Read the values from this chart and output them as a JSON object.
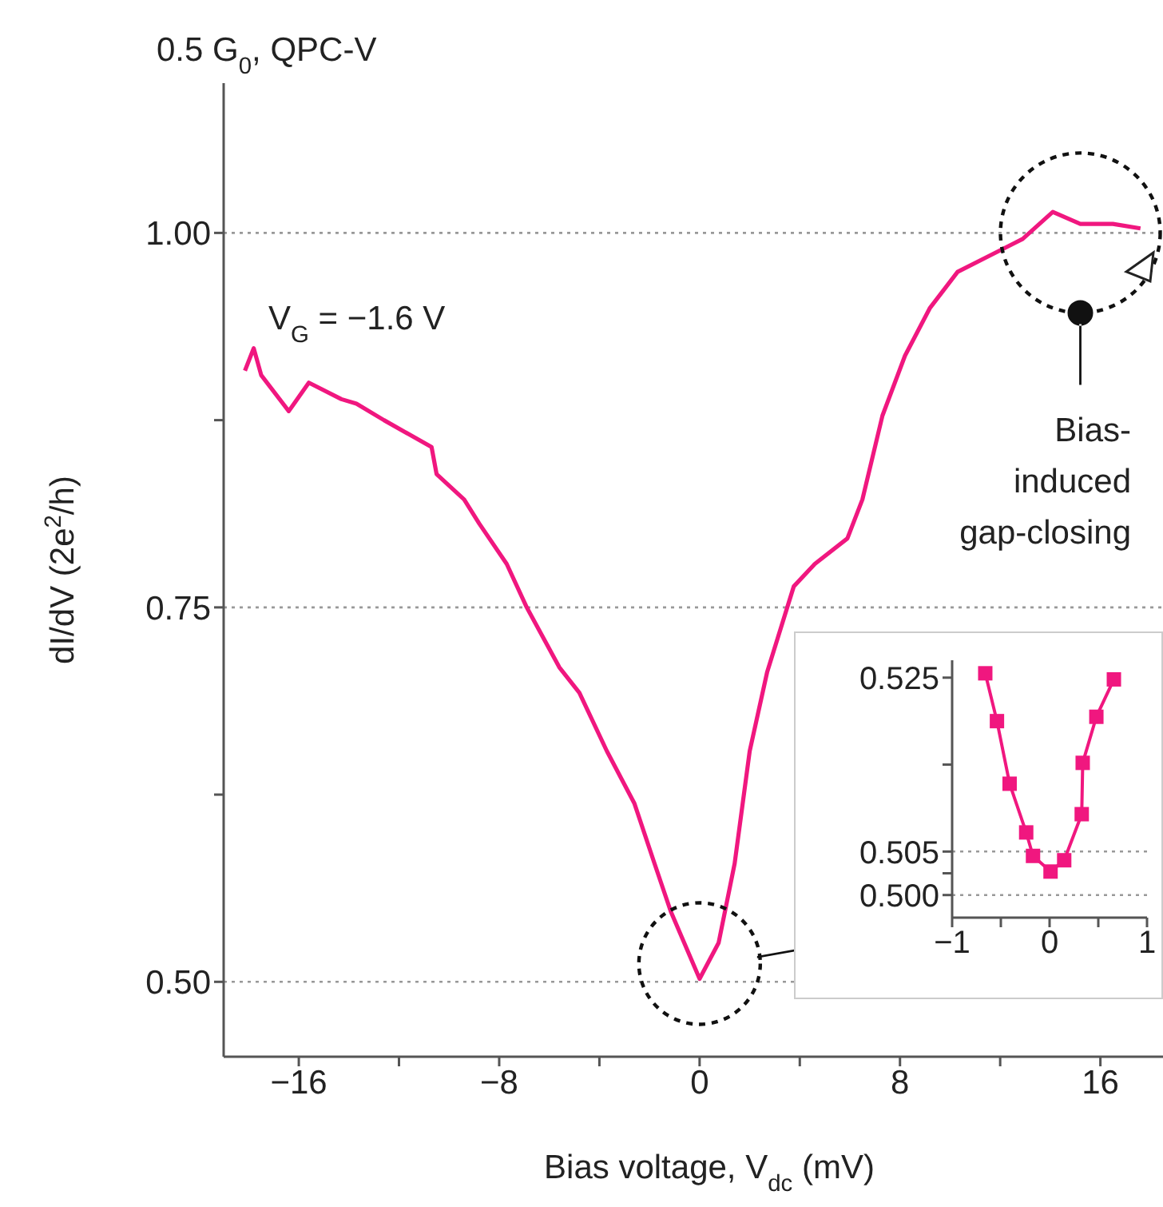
{
  "chart_data": [
    {
      "type": "line",
      "title": "0.5 G$_{0}$, QPC-V",
      "xlabel": "Bias voltage, V$_{dc}$ (mV)",
      "ylabel": "dI/dV (2e$^{2}$/h)",
      "annotations": [
        "V$_{G}$ = −1.6 V",
        "Bias-induced gap-closing"
      ],
      "series": [
        {
          "color": "#f0177f",
          "x": [
            -18.15,
            -17.8,
            -17.5,
            -16.4,
            -15.6,
            -14.3,
            -13.7,
            -12.6,
            -10.7,
            -10.5,
            -9.4,
            -8.8,
            -7.7,
            -6.9,
            -5.6,
            -4.8,
            -3.7,
            -2.6,
            -1.8,
            -1.15,
            0,
            0.76,
            1.4,
            2.0,
            2.7,
            3.76,
            4.6,
            5.9,
            6.5,
            7.3,
            8.2,
            9.2,
            10.3,
            11.6,
            12.9,
            14.1,
            15.2,
            16.5,
            17.6
          ],
          "values": [
            0.908,
            0.923,
            0.905,
            0.881,
            0.9,
            0.889,
            0.886,
            0.875,
            0.857,
            0.839,
            0.822,
            0.806,
            0.779,
            0.75,
            0.71,
            0.693,
            0.654,
            0.619,
            0.579,
            0.547,
            0.502,
            0.526,
            0.579,
            0.654,
            0.707,
            0.764,
            0.779,
            0.796,
            0.822,
            0.878,
            0.918,
            0.95,
            0.974,
            0.985,
            0.996,
            1.014,
            1.006,
            1.006,
            1.003
          ]
        }
      ],
      "xlim": [
        -19,
        18.5
      ],
      "xticks": [
        {
          "value": -16,
          "label": "−16"
        },
        {
          "value": -12,
          "label": null
        },
        {
          "value": -8,
          "label": "−8"
        },
        {
          "value": -4,
          "label": null
        },
        0,
        {
          "value": 4,
          "label": null
        },
        8,
        {
          "value": 12,
          "label": null
        },
        16
      ],
      "ylim": [
        0.45,
        1.1
      ],
      "yticks": [
        {
          "value": 0.5,
          "label": "0.50"
        },
        {
          "value": 0.625,
          "label": null
        },
        0.75,
        {
          "value": 0.875,
          "label": null
        },
        {
          "value": 1.0,
          "label": "1.00"
        }
      ],
      "ref_lines": [
        {
          "axis": "y",
          "value": 0.5,
          "color": "#999999",
          "line_style": "dotted"
        },
        {
          "axis": "y",
          "value": 0.75,
          "color": "#999999",
          "line_style": "dotted"
        },
        {
          "axis": "y",
          "value": 1.0,
          "color": "#999999",
          "line_style": "dotted"
        }
      ],
      "marker": "none",
      "line_style": "solid"
    },
    {
      "type": "line",
      "series": [
        {
          "color": "#f0177f",
          "x": [
            -0.66,
            -0.54,
            -0.41,
            -0.24,
            -0.17,
            0.01,
            0.15,
            0.33,
            0.34,
            0.48,
            0.66
          ],
          "values": [
            0.5255,
            0.52,
            0.5128,
            0.5072,
            0.5045,
            0.5027,
            0.504,
            0.5093,
            0.5152,
            0.5205,
            0.5248
          ]
        }
      ],
      "xlim": [
        -1,
        1
      ],
      "xticks": [
        {
          "value": -1,
          "label": "−1"
        },
        {
          "value": -0.5,
          "label": null
        },
        0,
        {
          "value": 0.5,
          "label": null
        },
        1
      ],
      "ylim": [
        0.4974,
        0.527
      ],
      "yticks": [
        {
          "value": 0.5,
          "label": "0.500"
        },
        {
          "value": 0.5025,
          "label": null
        },
        {
          "value": 0.505,
          "label": "0.505"
        },
        {
          "value": 0.515,
          "label": null
        },
        0.525
      ],
      "ref_lines": [
        {
          "axis": "y",
          "value": 0.5,
          "color": "#999999",
          "line_style": "dotted"
        },
        {
          "axis": "y",
          "value": 0.505,
          "color": "#999999",
          "line_style": "dotted"
        }
      ],
      "marker": "square",
      "line_style": "solid"
    }
  ]
}
